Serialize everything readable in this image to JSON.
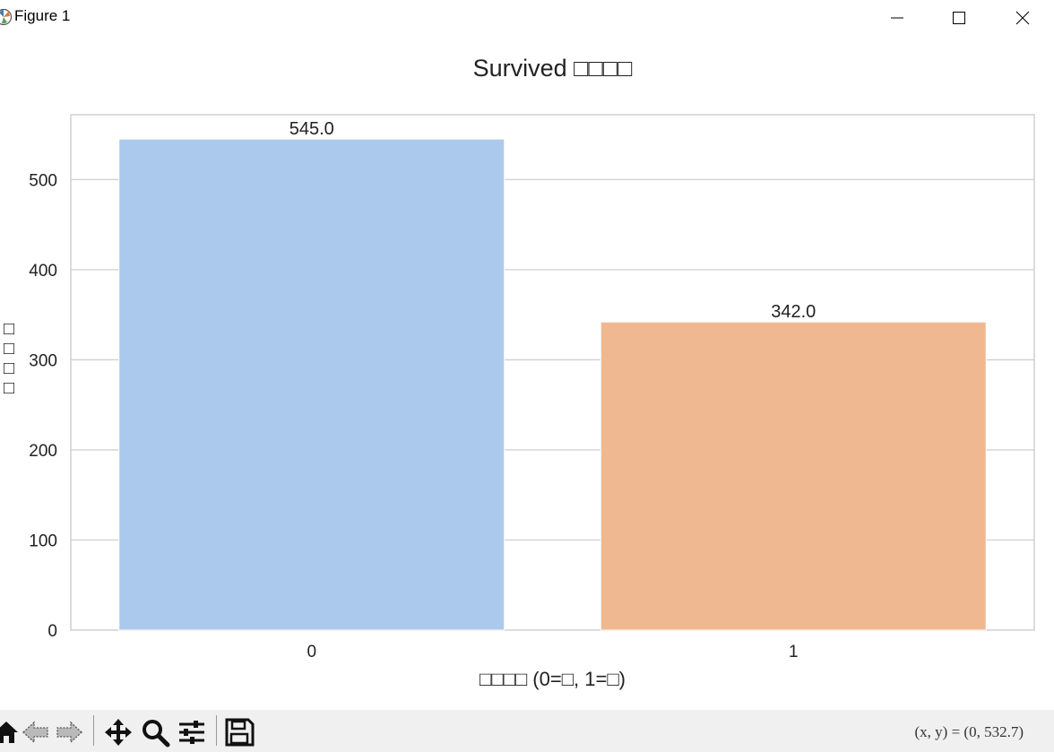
{
  "window": {
    "title": "Figure 1",
    "icons": [
      "matplotlib-icon",
      "minimize-icon",
      "maximize-icon",
      "close-icon"
    ]
  },
  "chart_data": {
    "type": "bar",
    "title": "Survived □□□□",
    "xlabel": "□□□□ (0=□, 1=□)",
    "ylabel": "□□□□",
    "categories": [
      "0",
      "1"
    ],
    "values": [
      545,
      342
    ],
    "value_labels": [
      "545.0",
      "342.0"
    ],
    "colors": [
      "#abc9ec",
      "#f0b891"
    ],
    "ylim": [
      0,
      572
    ],
    "yticks": [
      0,
      100,
      200,
      300,
      400,
      500
    ],
    "grid": "horizontal"
  },
  "toolbar": {
    "tools": [
      "home-icon",
      "back-icon",
      "forward-icon",
      "pan-icon",
      "zoom-icon",
      "configure-subplots-icon",
      "save-icon"
    ],
    "coordinates": "(x, y) = (0, 532.7)"
  }
}
